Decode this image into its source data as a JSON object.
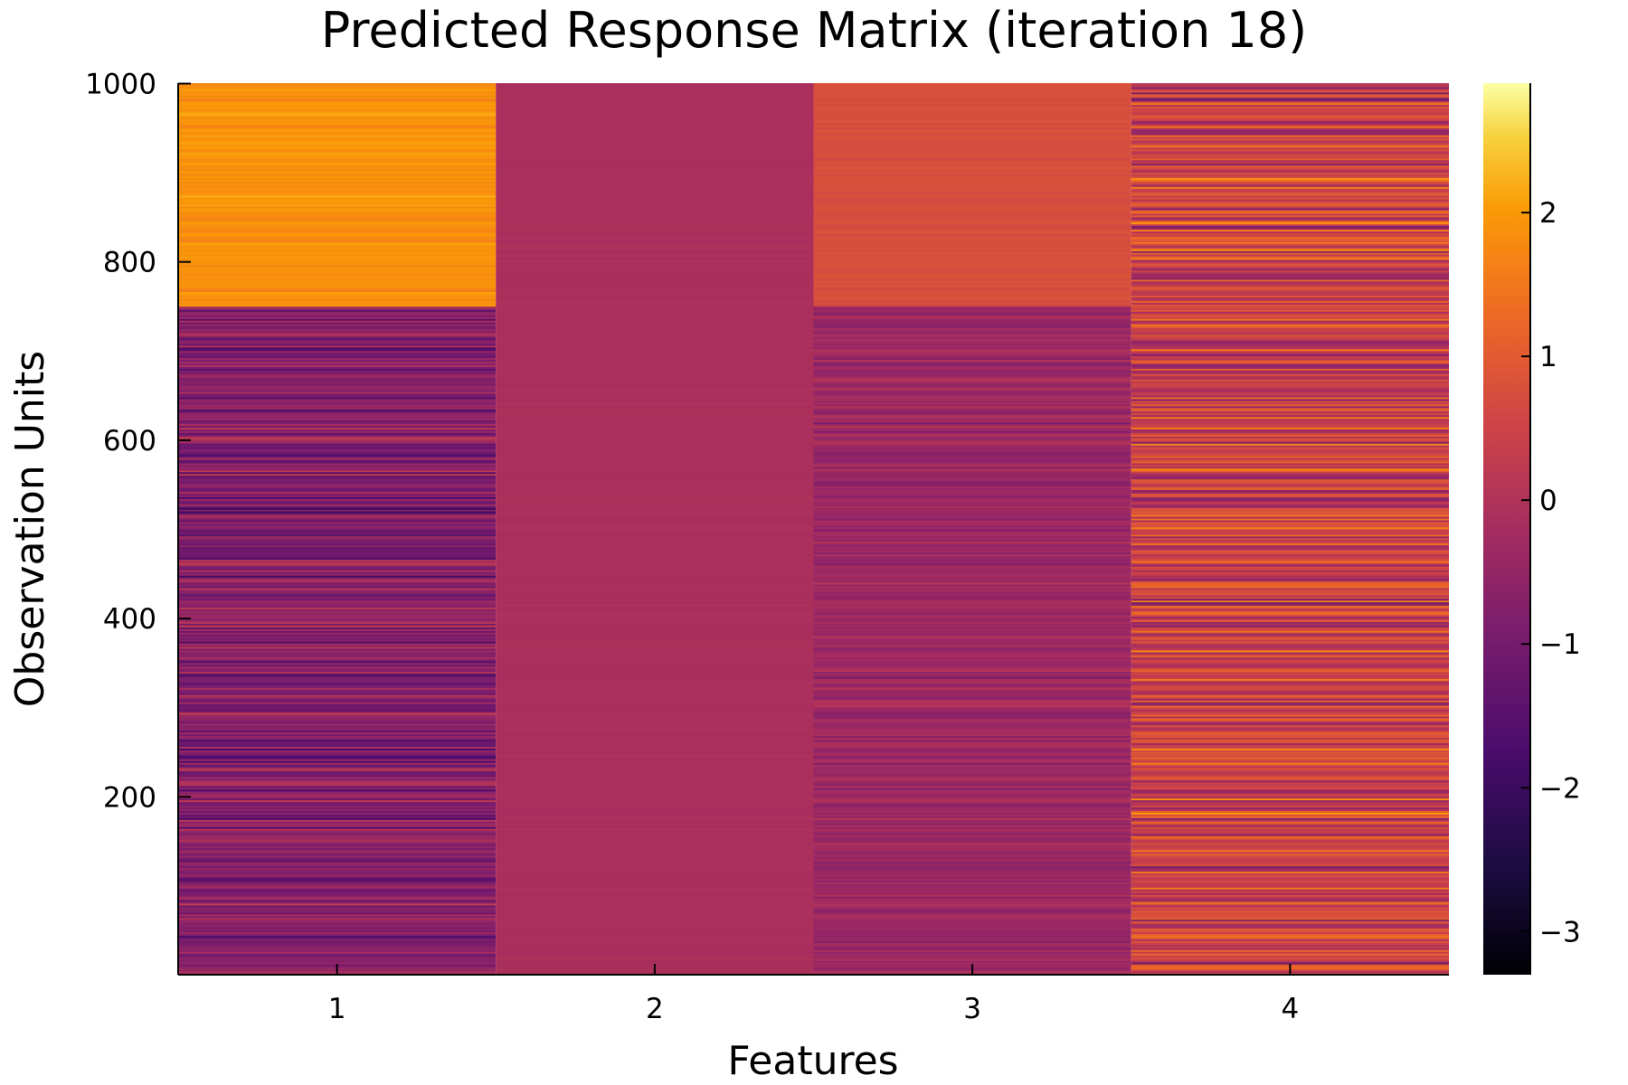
{
  "chart_data": {
    "type": "heatmap",
    "title": "Predicted Response Matrix (iteration 18)",
    "xlabel": "Features",
    "ylabel": "Observation Units",
    "x_categories": [
      "1",
      "2",
      "3",
      "4"
    ],
    "y_range": [
      1,
      1000
    ],
    "y_ticks": [
      200,
      400,
      600,
      800,
      1000
    ],
    "colorbar": {
      "colormap": "inferno",
      "range": [
        -3.3,
        2.9
      ],
      "ticks": [
        -3,
        -2,
        -1,
        0,
        1,
        2
      ],
      "tick_labels": [
        "−3",
        "−2",
        "−1",
        "0",
        "1",
        "2"
      ]
    },
    "blocks": [
      {
        "feature": "1",
        "rows": [
          1,
          750
        ],
        "mean": -0.75,
        "spread": 0.45
      },
      {
        "feature": "1",
        "rows": [
          751,
          1000
        ],
        "mean": 1.9,
        "spread": 0.12
      },
      {
        "feature": "2",
        "rows": [
          1,
          1000
        ],
        "mean": -0.1,
        "spread": 0.03
      },
      {
        "feature": "3",
        "rows": [
          1,
          750
        ],
        "mean": -0.35,
        "spread": 0.2
      },
      {
        "feature": "3",
        "rows": [
          751,
          1000
        ],
        "mean": 0.75,
        "spread": 0.05
      },
      {
        "feature": "4",
        "rows": [
          1,
          1000
        ],
        "mean": 0.45,
        "spread": 0.6
      }
    ],
    "grid": false,
    "legend": "colorbar-right"
  }
}
